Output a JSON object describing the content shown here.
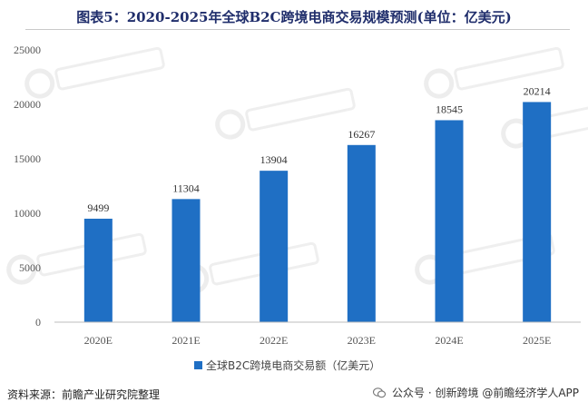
{
  "chart_data": {
    "type": "bar",
    "title": "图表5：2020-2025年全球B2C跨境电商交易规模预测(单位：亿美元)",
    "categories": [
      "2020E",
      "2021E",
      "2022E",
      "2023E",
      "2024E",
      "2025E"
    ],
    "series": [
      {
        "name": "全球B2C跨境电商交易额（亿美元）",
        "values": [
          9499,
          11304,
          13904,
          16267,
          18545,
          20214
        ]
      }
    ],
    "ylim": [
      0,
      25000
    ],
    "yticks": [
      0,
      5000,
      10000,
      15000,
      20000,
      25000
    ],
    "grid": false,
    "legend": "bottom",
    "bar_color": "#1f6fc4"
  },
  "footer": {
    "source": "资料来源：前瞻产业研究院整理",
    "account": "公众号 · 创新跨境",
    "author": "@前瞻经济学人APP"
  },
  "watermarks": [
    "前瞻产业研究院",
    "前瞻产业研究院",
    "前瞻产业研究院"
  ]
}
